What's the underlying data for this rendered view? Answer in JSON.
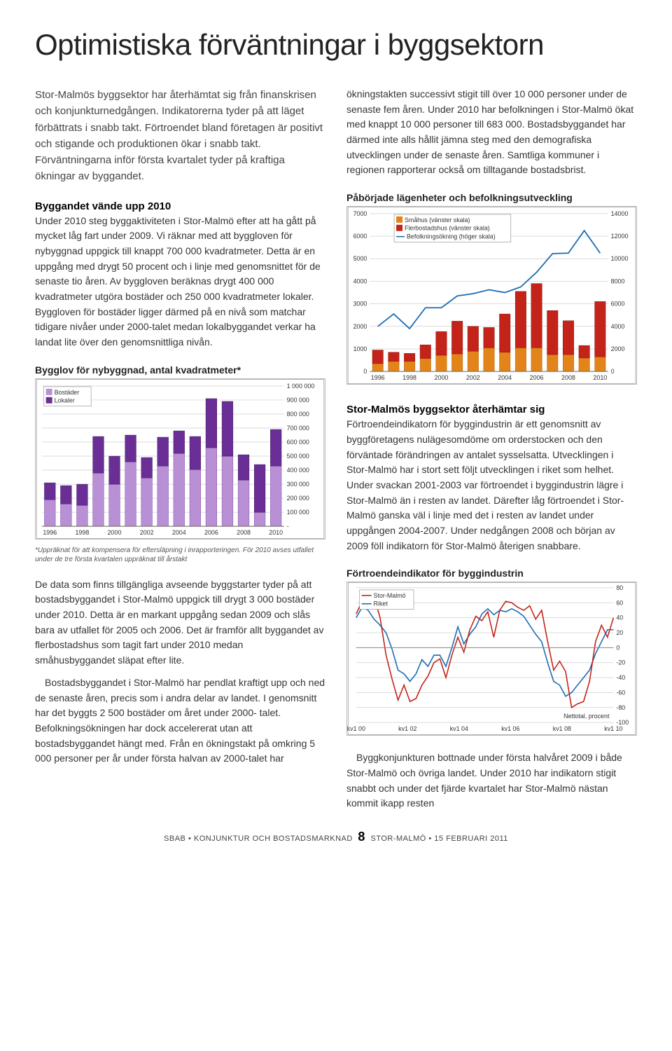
{
  "title": "Optimistiska förväntningar i byggsektorn",
  "intro": "Stor-Malmös byggsektor har återhämtat sig från finanskrisen och konjunkturnedgången. Indikatorerna tyder på att läget förbättrats i snabb takt. Förtroendet bland företagen är positivt och stigande och produktionen ökar i snabb takt. Förväntningarna inför första kvartalet tyder på kraftiga ökningar av byggandet.",
  "sec1": {
    "heading": "Byggandet vände upp 2010",
    "body": "Under 2010 steg byggaktiviteten i Stor-Malmö efter att ha gått på mycket låg fart under 2009. Vi räknar med att byggloven för nybyggnad uppgick till knappt 700 000 kvadratmeter. Detta är en uppgång med drygt 50 procent och i linje med genomsnittet för de senaste tio åren. Av byggloven beräknas drygt 400 000 kvadratmeter utgöra bostäder och 250 000 kvadratmeter lokaler. Byggloven för bostäder ligger därmed på en nivå som matchar tidigare nivåer under 2000-talet medan lokalbyggandet verkar ha landat lite över den genomsnittliga nivån."
  },
  "chart1": {
    "type": "stacked-bar",
    "title": "Bygglov för nybyggnad, antal kvadratmeter*",
    "legend": [
      "Bostäder",
      "Lokaler"
    ],
    "legend_colors": [
      "#b98fd6",
      "#6a2e96"
    ],
    "y_max": 1000000,
    "y_ticks": [
      "1 000 000",
      "900 000",
      "800 000",
      "700 000",
      "600 000",
      "500 000",
      "400 000",
      "300 000",
      "200 000",
      "100 000",
      "-"
    ],
    "x_labels": [
      "1996",
      "1998",
      "2000",
      "2002",
      "2004",
      "2006",
      "2008",
      "2010"
    ],
    "bars": [
      {
        "b": 190000,
        "l": 120000
      },
      {
        "b": 160000,
        "l": 130000
      },
      {
        "b": 150000,
        "l": 150000
      },
      {
        "b": 380000,
        "l": 260000
      },
      {
        "b": 300000,
        "l": 200000
      },
      {
        "b": 460000,
        "l": 190000
      },
      {
        "b": 345000,
        "l": 145000
      },
      {
        "b": 430000,
        "l": 205000
      },
      {
        "b": 520000,
        "l": 160000
      },
      {
        "b": 405000,
        "l": 235000
      },
      {
        "b": 560000,
        "l": 350000
      },
      {
        "b": 500000,
        "l": 390000
      },
      {
        "b": 330000,
        "l": 180000
      },
      {
        "b": 100000,
        "l": 340000
      },
      {
        "b": 430000,
        "l": 260000
      }
    ],
    "background": "#ffffff",
    "border": "#b5b5b5",
    "grid": "#cfcfcf",
    "footnote": "*Uppräknat för att kompensera för eftersläpning i inrapporteringen. För 2010 avses utfallet under de tre första kvartalen uppräknat till årstakt"
  },
  "para_after_chart1a": "De data som finns tillgängliga avseende byggstarter tyder på att bostadsbyggandet i Stor-Malmö uppgick till drygt 3 000 bostäder under 2010. Detta är en markant uppgång sedan 2009 och slås bara av utfallet för 2005 och 2006. Det är framför allt byggandet av flerbostadshus som tagit fart under 2010 medan småhusbyggandet släpat efter lite.",
  "para_after_chart1b": "Bostadsbyggandet i Stor-Malmö har pendlat kraftigt upp och ned de senaste åren, precis som i andra delar av landet. I genomsnitt har det byggts 2 500 bostäder om året under 2000- talet. Befolkningsökningen har dock accelererat utan att bostadsbyggandet hängt med. Från en ökningstakt på omkring 5 000 personer per år under första halvan av 2000-talet har",
  "para_right_top": "ökningstakten successivt stigit till över 10 000 personer under de senaste fem åren. Under 2010 har befolkningen i Stor-Malmö ökat med knappt 10 000 personer till 683 000. Bostadsbyggandet har därmed inte alls hållit jämna steg med den demografiska utvecklingen under de senaste åren. Samtliga kommuner i regionen rapporterar också om tilltagande bostadsbrist.",
  "chart2": {
    "type": "stacked-bar-with-line",
    "title": "Påbörjade lägenheter och befolkningsutveckling",
    "legend": [
      "Småhus (vänster skala)",
      "Flerbostadshus (vänster skala)",
      "Befolkningsökning (höger skala)"
    ],
    "legend_colors": [
      "#e3841a",
      "#c4231a",
      "#1b6cb3"
    ],
    "y_left_max": 7000,
    "y_left_ticks": [
      7000,
      6000,
      5000,
      4000,
      3000,
      2000,
      1000,
      0
    ],
    "y_right_max": 14000,
    "y_right_ticks": [
      14000,
      12000,
      10000,
      8000,
      6000,
      4000,
      2000,
      0
    ],
    "x_labels": [
      "1996",
      "1998",
      "2000",
      "2002",
      "2004",
      "2006",
      "2008",
      "2010"
    ],
    "bars": [
      {
        "s": 350,
        "f": 600
      },
      {
        "s": 450,
        "f": 400
      },
      {
        "s": 450,
        "f": 350
      },
      {
        "s": 580,
        "f": 600
      },
      {
        "s": 720,
        "f": 1050
      },
      {
        "s": 780,
        "f": 1450
      },
      {
        "s": 900,
        "f": 1100
      },
      {
        "s": 1050,
        "f": 900
      },
      {
        "s": 850,
        "f": 1700
      },
      {
        "s": 1050,
        "f": 2500
      },
      {
        "s": 1050,
        "f": 2850
      },
      {
        "s": 750,
        "f": 1950
      },
      {
        "s": 750,
        "f": 1500
      },
      {
        "s": 600,
        "f": 550
      },
      {
        "s": 650,
        "f": 2450
      }
    ],
    "line": [
      4000,
      5100,
      3800,
      5650,
      5650,
      6700,
      6900,
      7250,
      7000,
      7500,
      8800,
      10450,
      10500,
      12500,
      10500
    ],
    "background": "#ffffff",
    "border": "#b5b5b5",
    "grid": "#cfcfcf"
  },
  "sec2": {
    "heading": "Stor-Malmös byggsektor återhämtar sig",
    "body": "Förtroendeindikatorn för byggindustrin är ett genomsnitt av byggföretagens nulägesomdöme om orderstocken och den förväntade förändringen av antalet sysselsatta. Utvecklingen i Stor-Malmö har i stort sett följt utvecklingen i riket som helhet. Under svackan 2001-2003 var förtroendet i byggindustrin lägre i Stor-Malmö än i resten av landet. Därefter låg förtroendet i Stor-Malmö ganska väl i linje med det i resten av landet under uppgången 2004-2007. Under nedgången 2008 och början av 2009 föll indikatorn för Stor-Malmö återigen snabbare."
  },
  "chart3": {
    "type": "line",
    "title": "Förtroendeindikator för byggindustrin",
    "legend": [
      "Stor-Malmö",
      "Riket"
    ],
    "legend_colors": [
      "#c4231a",
      "#1b6cb3"
    ],
    "y_min": -100,
    "y_max": 80,
    "y_ticks": [
      80,
      60,
      40,
      20,
      0,
      -20,
      -40,
      -60,
      -80,
      -100
    ],
    "x_labels": [
      "kv1 00",
      "kv1 02",
      "kv1 04",
      "kv1 06",
      "kv1 08",
      "kv1 10"
    ],
    "note": "Nettotal, procent",
    "series_storMalmo": [
      45,
      62,
      56,
      68,
      40,
      -10,
      -42,
      -70,
      -50,
      -72,
      -68,
      -50,
      -38,
      -20,
      -15,
      -40,
      -10,
      14,
      -6,
      24,
      42,
      36,
      48,
      14,
      50,
      62,
      60,
      54,
      50,
      56,
      38,
      50,
      8,
      -30,
      -18,
      -32,
      -80,
      -75,
      -72,
      -45,
      8,
      30,
      14,
      40
    ],
    "series_riket": [
      40,
      54,
      50,
      38,
      30,
      20,
      -2,
      -30,
      -35,
      -45,
      -35,
      -16,
      -25,
      -10,
      -10,
      -25,
      0,
      28,
      5,
      18,
      28,
      45,
      52,
      44,
      50,
      48,
      52,
      48,
      42,
      30,
      18,
      8,
      -20,
      -45,
      -50,
      -65,
      -60,
      -50,
      -40,
      -30,
      -8,
      8,
      24,
      24
    ],
    "grid": "#cfcfcf",
    "border": "#b5b5b5",
    "background": "#ffffff"
  },
  "para_after_chart3": "Byggkonjunkturen bottnade under första halvåret 2009 i både Stor-Malmö och övriga landet. Under 2010 har indikatorn stigit snabbt och under det fjärde kvartalet har Stor-Malmö nästan kommit ikapp resten",
  "footer": {
    "left": "SBAB • KONJUNKTUR OCH BOSTADSMARKNAD",
    "page": "8",
    "right": "STOR-MALMÖ • 15 FEBRUARI 2011"
  }
}
